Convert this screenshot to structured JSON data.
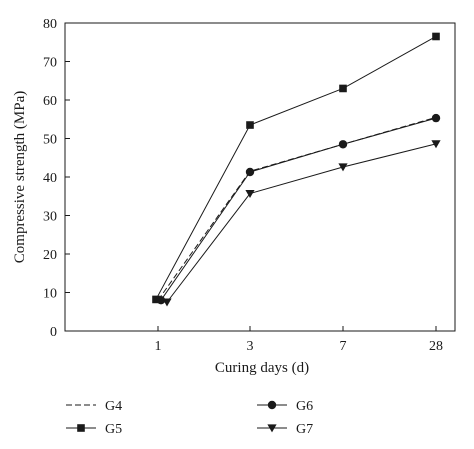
{
  "chart_data": {
    "type": "line",
    "x": [
      "1",
      "3",
      "7",
      "28"
    ],
    "xlabel": "Curing days (d)",
    "ylabel": "Compressive strength (MPa)",
    "ylim": [
      0,
      80
    ],
    "yticks": [
      "0",
      "10",
      "20",
      "30",
      "40",
      "50",
      "60",
      "70",
      "80"
    ],
    "grid": false,
    "legend_position": "bottom",
    "series": [
      {
        "name": "G4",
        "marker": "none",
        "line": "dashed",
        "values": [
          8,
          41.5,
          48.5,
          55.5
        ]
      },
      {
        "name": "G5",
        "marker": "square",
        "line": "solid",
        "values": [
          8.2,
          53.5,
          63,
          76.5
        ]
      },
      {
        "name": "G6",
        "marker": "circle",
        "line": "solid",
        "values": [
          8,
          41.3,
          48.5,
          55.3
        ]
      },
      {
        "name": "G7",
        "marker": "triangle-down",
        "line": "solid",
        "values": [
          7.5,
          35.7,
          42.6,
          48.6
        ]
      }
    ],
    "colors": {
      "line": "#1a1a1a",
      "background": "#ffffff"
    }
  }
}
